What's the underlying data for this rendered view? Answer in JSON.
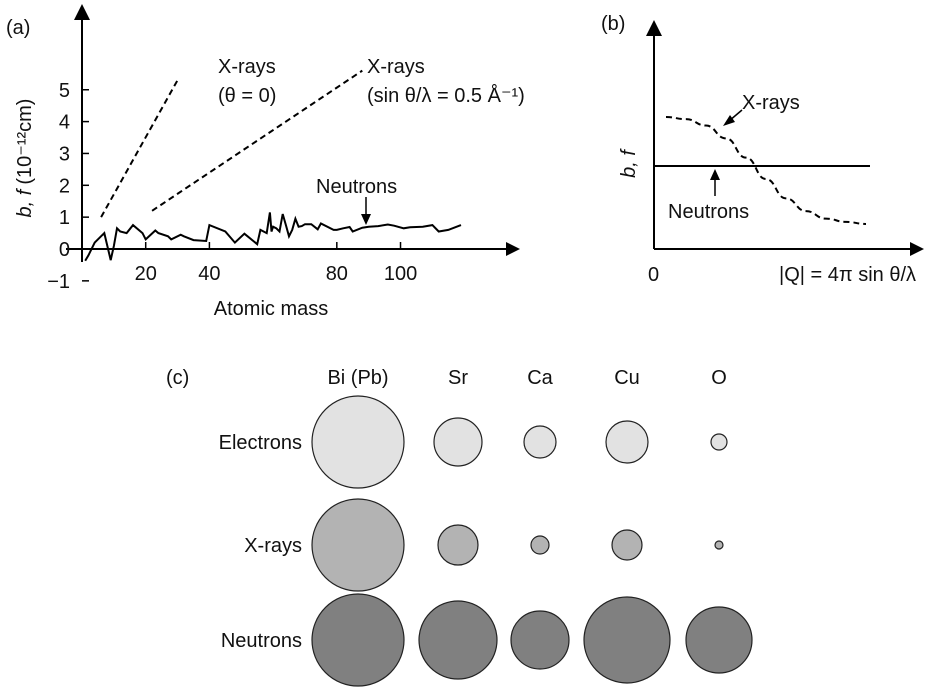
{
  "colors": {
    "electrons": "#e2e2e2",
    "xrays": "#b3b3b3",
    "neutrons": "#808080"
  },
  "panel_a": {
    "label": "(a)",
    "ylabel_prefix": "b, f",
    "ylabel_unit": "(10⁻¹²cm)",
    "xlabel": "Atomic mass",
    "ann_xray0_line1": "X-rays",
    "ann_xray0_line2": "(θ = 0)",
    "ann_xray05_line1": "X-rays",
    "ann_xray05_line2": "(sin θ/λ = 0.5 Å⁻¹)",
    "ann_neutrons": "Neutrons"
  },
  "panel_b": {
    "label": "(b)",
    "ylabel": "b, f",
    "origin_label": "0",
    "xlabel": "|Q| = 4π sin θ/λ",
    "ann_xrays": "X-rays",
    "ann_neutrons": "Neutrons"
  },
  "panel_c": {
    "label": "(c)",
    "columns": [
      "Bi (Pb)",
      "Sr",
      "Ca",
      "Cu",
      "O"
    ],
    "rows": [
      "Electrons",
      "X-rays",
      "Neutrons"
    ]
  },
  "chart_data": [
    {
      "type": "line",
      "panel": "(a)",
      "xlabel": "Atomic mass",
      "ylabel": "b, f (10⁻¹²cm)",
      "xlim": [
        0,
        135
      ],
      "ylim": [
        -1.5,
        6.3
      ],
      "xticks": [
        20,
        40,
        80,
        100
      ],
      "yticks": [
        -1,
        0,
        1,
        2,
        3,
        4,
        5
      ],
      "series": [
        {
          "name": "Neutrons",
          "style": "solid",
          "x": [
            1,
            2,
            4,
            7,
            9,
            10,
            11,
            12,
            14,
            16,
            19,
            20,
            23,
            24,
            27,
            28,
            31,
            32,
            35,
            39,
            40,
            45,
            48,
            51,
            52,
            55,
            56,
            58,
            59,
            59.5,
            60,
            61,
            62,
            63,
            64,
            65,
            66,
            67,
            68,
            69,
            70,
            72,
            74,
            75,
            79,
            80,
            82,
            84,
            85,
            88,
            90,
            93,
            96,
            98,
            101,
            103,
            107,
            110,
            112,
            115,
            119
          ],
          "y": [
            -0.37,
            -0.2,
            0.2,
            0.5,
            -0.35,
            0.1,
            0.65,
            0.55,
            0.5,
            0.75,
            0.5,
            0.3,
            0.58,
            0.5,
            0.4,
            0.3,
            0.45,
            0.4,
            0.28,
            0.25,
            0.75,
            0.55,
            0.2,
            0.48,
            0.4,
            0.15,
            0.6,
            0.5,
            1.15,
            0.55,
            0.7,
            0.65,
            0.55,
            1.1,
            0.75,
            0.4,
            0.6,
            0.95,
            0.7,
            0.72,
            0.78,
            0.78,
            0.62,
            0.8,
            0.6,
            0.6,
            0.65,
            0.69,
            0.55,
            0.67,
            0.7,
            0.72,
            0.77,
            0.73,
            0.65,
            0.68,
            0.7,
            0.75,
            0.55,
            0.6,
            0.75
          ]
        },
        {
          "name": "X-rays",
          "style": "dashed",
          "x": [
            6,
            30
          ],
          "y": [
            1.0,
            5.3
          ]
        },
        {
          "name": "X-rays",
          "style": "dashed",
          "x": [
            22,
            88
          ],
          "y": [
            1.2,
            5.6
          ]
        }
      ]
    },
    {
      "type": "line",
      "panel": "(b)",
      "xlabel": "|Q| = 4π sin θ/λ",
      "ylabel": "b, f",
      "series": [
        {
          "name": "X-rays",
          "style": "dashed",
          "x": [
            0,
            0.1,
            0.2,
            0.3,
            0.4,
            0.5,
            0.6,
            0.7,
            0.8,
            0.9,
            1.0
          ],
          "y": [
            1.0,
            0.98,
            0.92,
            0.8,
            0.62,
            0.42,
            0.24,
            0.12,
            0.05,
            0.02,
            0.0
          ]
        },
        {
          "name": "Neutrons",
          "style": "solid",
          "x": [
            0,
            1.0
          ],
          "y": [
            0.5,
            0.5
          ]
        }
      ]
    },
    {
      "type": "scatter",
      "panel": "(c)",
      "categories": [
        "Bi (Pb)",
        "Sr",
        "Ca",
        "Cu",
        "O"
      ],
      "series": [
        {
          "name": "Electrons",
          "values": [
            46,
            24,
            16,
            21,
            8
          ]
        },
        {
          "name": "X-rays",
          "values": [
            46,
            20,
            9,
            15,
            4
          ]
        },
        {
          "name": "Neutrons",
          "values": [
            46,
            39,
            29,
            43,
            33
          ]
        }
      ]
    }
  ]
}
